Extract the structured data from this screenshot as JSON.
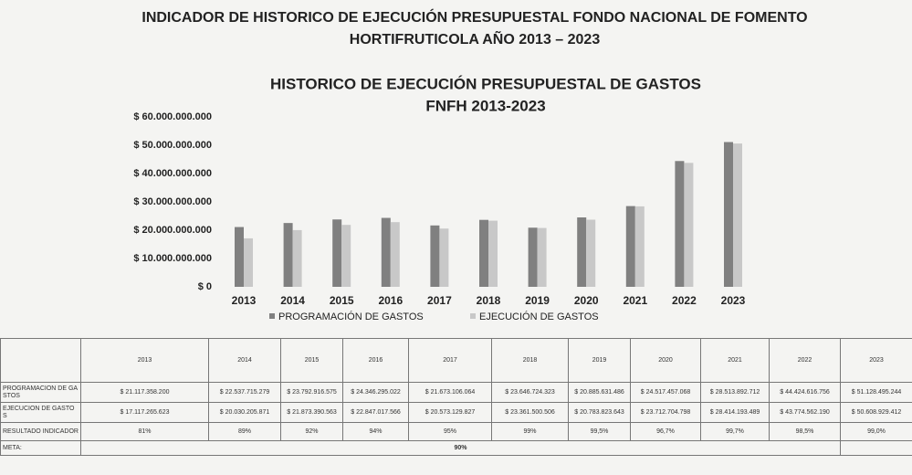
{
  "header": {
    "title": [
      "INDICADOR DE HISTORICO DE EJECUCIÓN PRESUPUESTAL FONDO NACIONAL DE FOMENTO",
      "HORTIFRUTICOLA AÑO 2013 – 2023"
    ]
  },
  "chart_data": {
    "type": "bar",
    "title": [
      "HISTORICO DE EJECUCIÓN PRESUPUESTAL DE GASTOS",
      "FNFH 2013-2023"
    ],
    "categories": [
      "2013",
      "2014",
      "2015",
      "2016",
      "2017",
      "2018",
      "2019",
      "2020",
      "2021",
      "2022",
      "2023"
    ],
    "series": [
      {
        "name": "PROGRAMACIÓN DE GASTOS",
        "color": "#808080",
        "values": [
          21117358200,
          22537715279,
          23792916575,
          24346295022,
          21673106064,
          23646724323,
          20885631486,
          24517457068,
          28513892712,
          44424616756,
          51128495244
        ],
        "value_labels": [
          "$ 21.117.358.200",
          "$ 22.537.715.279",
          "$ 23.792.916.575",
          "$ 24.346.295.022",
          "$ 21.673.106.064",
          "$ 23.646.724.323",
          "$ 20.885.631.486",
          "$ 24.517.457.068",
          "$ 28.513.892.712",
          "$ 44.424.616.756",
          "$ 51.128.495.244"
        ]
      },
      {
        "name": "EJECUCIÓN DE GASTOS",
        "color": "#c8c8c8",
        "values": [
          17117265623,
          20030205871,
          21873390563,
          22847017566,
          20573129827,
          23361500506,
          20783823643,
          23712704798,
          28414193489,
          43774562190,
          50608929412
        ],
        "value_labels": [
          "$ 17.117.265.623",
          "$ 20.030.205.871",
          "$ 21.873.390.563",
          "$ 22.847.017.566",
          "$ 20.573.129.827",
          "$ 23.361.500.506",
          "$ 20.783.823.643",
          "$ 23.712.704.798",
          "$ 28.414.193.489",
          "$ 43.774.562.190",
          "$ 50.608.929.412"
        ]
      }
    ],
    "ylim": [
      0,
      60000000000
    ],
    "yticks": [
      {
        "value": 0,
        "label": "$ 0"
      },
      {
        "value": 10000000000,
        "label": "$ 10.000.000.000"
      },
      {
        "value": 20000000000,
        "label": "$ 20.000.000.000"
      },
      {
        "value": 30000000000,
        "label": "$ 30.000.000.000"
      },
      {
        "value": 40000000000,
        "label": "$ 40.000.000.000"
      },
      {
        "value": 50000000000,
        "label": "$ 50.000.000.000"
      },
      {
        "value": 60000000000,
        "label": "$ 60.000.000.000"
      }
    ],
    "grid": false
  },
  "table": {
    "row_labels": [
      "PROGRAMACION DE GASTOS",
      "EJECUCION DE GASTOS",
      "RESULTADO INDICADOR"
    ],
    "indicator": [
      "81%",
      "89%",
      "92%",
      "94%",
      "95%",
      "99%",
      "99,5%",
      "96,7%",
      "99,7%",
      "98,5%",
      "99,0%"
    ],
    "meta_label": "META:",
    "meta_value": "90%"
  }
}
